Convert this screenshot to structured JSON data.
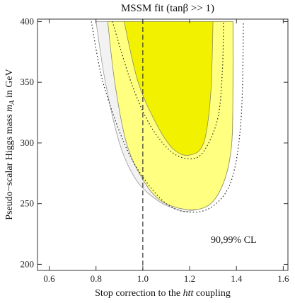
{
  "chart_data": {
    "type": "area",
    "title": "MSSM fit (tanβ >> 1)",
    "xlabel": "Stop correction to the htt coupling",
    "ylabel": "Pseudo−scalar Higgs mass m_A in GeV",
    "xlim": [
      0.55,
      1.62
    ],
    "ylim": [
      195,
      402
    ],
    "x_ticks": [
      0.6,
      0.8,
      1.0,
      1.2,
      1.4,
      1.6
    ],
    "x_tick_labels": [
      "0.6",
      "0.8",
      "1.0",
      "1.2",
      "1.4",
      "1.6"
    ],
    "y_ticks": [
      200,
      250,
      300,
      350,
      400
    ],
    "y_tick_labels": [
      "200",
      "250",
      "300",
      "350",
      "400"
    ],
    "annotation": "90,99% CL",
    "reference_line_x": 1.0,
    "regions": [
      {
        "level": "99% CL (outer, pale)",
        "color": "#ffff80",
        "left": [
          [
            0.85,
            400
          ],
          [
            0.88,
            350
          ],
          [
            0.93,
            300
          ],
          [
            1.0,
            270
          ],
          [
            1.08,
            252
          ],
          [
            1.2,
            245
          ]
        ],
        "right": [
          [
            1.2,
            245
          ],
          [
            1.29,
            250
          ],
          [
            1.35,
            270
          ],
          [
            1.38,
            300
          ],
          [
            1.385,
            350
          ],
          [
            1.385,
            400
          ]
        ]
      },
      {
        "level": "90% CL (inner, bright)",
        "color": "#f2f200",
        "left": [
          [
            0.92,
            400
          ],
          [
            0.98,
            350
          ],
          [
            1.06,
            315
          ],
          [
            1.13,
            295
          ],
          [
            1.2,
            290
          ]
        ],
        "right": [
          [
            1.2,
            290
          ],
          [
            1.26,
            300
          ],
          [
            1.29,
            340
          ],
          [
            1.3,
            400
          ]
        ]
      }
    ],
    "grey_band_left": [
      [
        0.8,
        400
      ],
      [
        0.84,
        350
      ],
      [
        0.9,
        300
      ],
      [
        0.97,
        270
      ],
      [
        1.06,
        253
      ],
      [
        1.15,
        245
      ],
      [
        1.2,
        244
      ]
    ],
    "dotted_curves": [
      [
        [
          0.78,
          400
        ],
        [
          0.83,
          350
        ],
        [
          0.92,
          300
        ],
        [
          1.0,
          272
        ],
        [
          1.1,
          250
        ],
        [
          1.2,
          243
        ],
        [
          1.3,
          248
        ],
        [
          1.38,
          270
        ],
        [
          1.42,
          320
        ],
        [
          1.43,
          400
        ]
      ],
      [
        [
          0.87,
          400
        ],
        [
          0.95,
          350
        ],
        [
          1.03,
          315
        ],
        [
          1.12,
          293
        ],
        [
          1.2,
          287
        ],
        [
          1.26,
          293
        ],
        [
          1.32,
          320
        ],
        [
          1.34,
          360
        ],
        [
          1.345,
          400
        ]
      ]
    ]
  }
}
